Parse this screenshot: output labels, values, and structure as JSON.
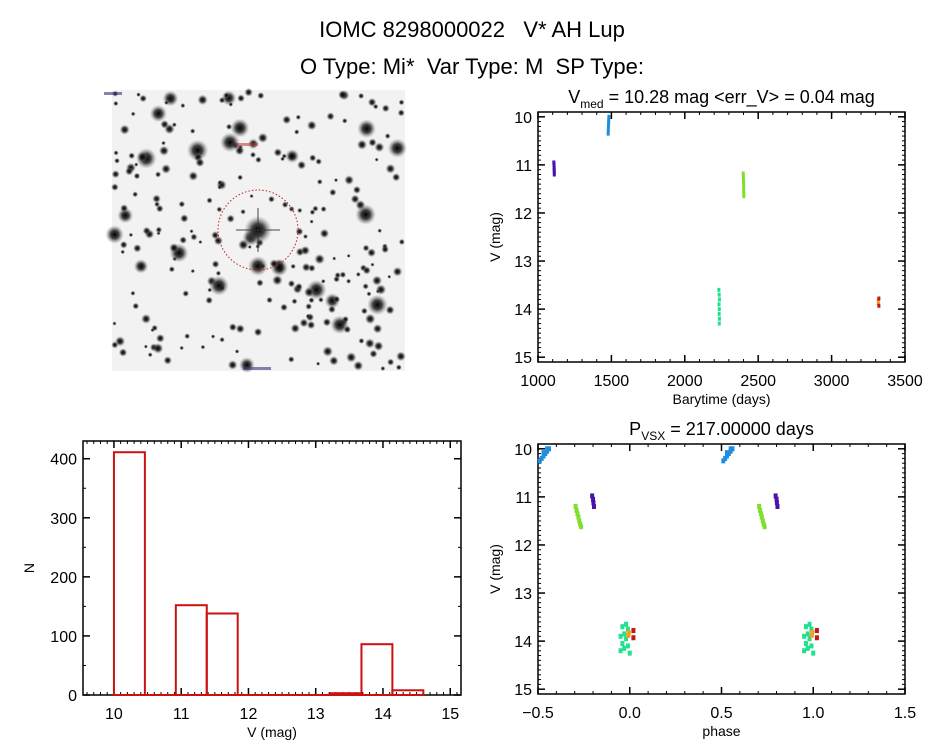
{
  "header": {
    "title": "IOMC 8298000022   V* AH Lup",
    "subtitle": "O Type: Mi*  Var Type: M  SP Type:"
  },
  "chart_data": [
    {
      "id": "lightcurve",
      "type": "scatter",
      "title_main": "V",
      "title_sub": "med",
      "title_rest": " = 10.28 mag <err_V> = 0.04 mag",
      "xlabel": "Barytime (days)",
      "ylabel": "V (mag)",
      "xlim": [
        1000,
        3500
      ],
      "ylim": [
        15.1,
        9.9
      ],
      "xticks": [
        1000,
        1500,
        2000,
        2500,
        3000,
        3500
      ],
      "yticks": [
        10,
        11,
        12,
        13,
        14,
        15
      ],
      "series": [
        {
          "name": "season1",
          "color": "#4a12a8",
          "points": [
            [
              1108,
              10.95
            ],
            [
              1109,
              11.0
            ],
            [
              1110,
              11.05
            ],
            [
              1110,
              11.1
            ],
            [
              1111,
              11.15
            ],
            [
              1111,
              11.2
            ]
          ]
        },
        {
          "name": "season2",
          "color": "#1e8ee0",
          "points": [
            [
              1478,
              10.35
            ],
            [
              1479,
              10.28
            ],
            [
              1480,
              10.2
            ],
            [
              1481,
              10.12
            ],
            [
              1482,
              10.06
            ],
            [
              1483,
              10.0
            ]
          ]
        },
        {
          "name": "season3",
          "color": "#22e08e",
          "points": [
            [
              2232,
              13.6
            ],
            [
              2234,
              13.7
            ],
            [
              2236,
              13.8
            ],
            [
              2233,
              13.9
            ],
            [
              2235,
              14.0
            ],
            [
              2234,
              14.1
            ],
            [
              2236,
              14.2
            ],
            [
              2235,
              14.3
            ]
          ]
        },
        {
          "name": "season4",
          "color": "#7ee02a",
          "points": [
            [
              2398,
              11.18
            ],
            [
              2399,
              11.26
            ],
            [
              2400,
              11.34
            ],
            [
              2401,
              11.42
            ],
            [
              2401,
              11.5
            ],
            [
              2402,
              11.58
            ],
            [
              2402,
              11.65
            ]
          ]
        },
        {
          "name": "season5",
          "color": "#f0a020",
          "points": [
            [
              3318,
              13.82
            ],
            [
              3318,
              13.88
            ]
          ]
        },
        {
          "name": "season6",
          "color": "#c01818",
          "points": [
            [
              3322,
              13.78
            ],
            [
              3322,
              13.93
            ]
          ]
        }
      ]
    },
    {
      "id": "histogram",
      "type": "bar",
      "xlabel": "V (mag)",
      "ylabel": "N",
      "xlim": [
        9.54,
        15.16
      ],
      "ylim": [
        0,
        430
      ],
      "xticks": [
        10,
        11,
        12,
        13,
        14,
        15
      ],
      "yticks": [
        0,
        100,
        200,
        300,
        400
      ],
      "color": "#cc1111",
      "bin_edges": [
        10.0,
        10.46,
        10.92,
        11.38,
        11.84,
        12.3,
        12.76,
        13.22,
        13.68,
        14.14,
        14.6
      ],
      "values": [
        411,
        0,
        152,
        138,
        0,
        0,
        0,
        3,
        86,
        8
      ]
    },
    {
      "id": "phased",
      "type": "scatter",
      "title_main": "P",
      "title_sub": "VSX",
      "title_rest": " = 217.00000 days",
      "xlabel": "phase",
      "ylabel": "V (mag)",
      "xlim": [
        -0.5,
        1.5
      ],
      "ylim": [
        15.1,
        9.9
      ],
      "xticks": [
        -0.5,
        0.0,
        0.5,
        1.0,
        1.5
      ],
      "yticks": [
        10,
        11,
        12,
        13,
        14,
        15
      ],
      "repeat_offset": 1,
      "series": [
        {
          "name": "season1",
          "color": "#4a12a8",
          "points": [
            [
              -0.205,
              10.98
            ],
            [
              -0.2,
              11.05
            ],
            [
              -0.198,
              11.12
            ],
            [
              -0.195,
              11.2
            ]
          ]
        },
        {
          "name": "season2",
          "color": "#1e8ee0",
          "points": [
            [
              -0.49,
              10.25
            ],
            [
              -0.48,
              10.2
            ],
            [
              -0.47,
              10.15
            ],
            [
              -0.46,
              10.1
            ],
            [
              -0.45,
              10.05
            ],
            [
              -0.44,
              10.0
            ],
            [
              -0.47,
              10.08
            ],
            [
              -0.45,
              10.0
            ]
          ]
        },
        {
          "name": "season3",
          "color": "#22e08e",
          "points": [
            [
              -0.04,
              13.7
            ],
            [
              -0.02,
              13.65
            ],
            [
              -0.01,
              13.75
            ],
            [
              -0.03,
              13.85
            ],
            [
              -0.05,
              13.9
            ],
            [
              -0.02,
              13.95
            ],
            [
              -0.04,
              14.05
            ],
            [
              -0.01,
              14.1
            ],
            [
              -0.03,
              14.15
            ],
            [
              0.0,
              14.25
            ],
            [
              -0.05,
              14.2
            ]
          ]
        },
        {
          "name": "season4",
          "color": "#7ee02a",
          "points": [
            [
              -0.295,
              11.2
            ],
            [
              -0.29,
              11.28
            ],
            [
              -0.285,
              11.35
            ],
            [
              -0.28,
              11.42
            ],
            [
              -0.275,
              11.5
            ],
            [
              -0.27,
              11.57
            ],
            [
              -0.265,
              11.62
            ]
          ]
        },
        {
          "name": "season5",
          "color": "#f0a020",
          "points": [
            [
              -0.005,
              13.82
            ],
            [
              -0.008,
              13.88
            ]
          ]
        },
        {
          "name": "season6",
          "color": "#c01818",
          "points": [
            [
              0.02,
              13.78
            ],
            [
              0.02,
              13.93
            ]
          ]
        }
      ]
    }
  ]
}
